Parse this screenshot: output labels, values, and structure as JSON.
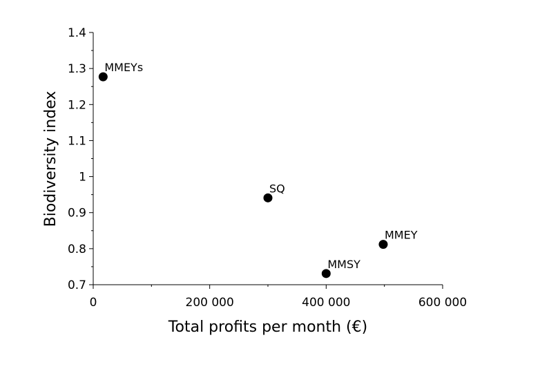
{
  "chart_data": {
    "type": "scatter",
    "title": "",
    "xlabel": "Total profits per month (€)",
    "ylabel": "Biodiversity index",
    "xlim": [
      0,
      600000
    ],
    "ylim": [
      0.7,
      1.4
    ],
    "grid": false,
    "xticks": [
      {
        "value": 0,
        "label": "0"
      },
      {
        "value": 200000,
        "label": "200 000"
      },
      {
        "value": 400000,
        "label": "400 000"
      },
      {
        "value": 600000,
        "label": "600 000"
      }
    ],
    "x_minor_ticks": [
      100000,
      300000,
      500000
    ],
    "yticks": [
      {
        "value": 0.7,
        "label": "0.7"
      },
      {
        "value": 0.8,
        "label": "0.8"
      },
      {
        "value": 0.9,
        "label": "0.9"
      },
      {
        "value": 1.0,
        "label": "1"
      },
      {
        "value": 1.1,
        "label": "1.1"
      },
      {
        "value": 1.2,
        "label": "1.2"
      },
      {
        "value": 1.3,
        "label": "1.3"
      },
      {
        "value": 1.4,
        "label": "1.4"
      }
    ],
    "y_minor_ticks": [
      0.75,
      0.85,
      0.95,
      1.05,
      1.15,
      1.25,
      1.35
    ],
    "points": [
      {
        "label": "MMEYs",
        "x": 17000,
        "y": 1.277
      },
      {
        "label": "SQ",
        "x": 300000,
        "y": 0.941
      },
      {
        "label": "MMEY",
        "x": 498000,
        "y": 0.812
      },
      {
        "label": "MMSY",
        "x": 400000,
        "y": 0.731
      }
    ],
    "marker_color": "#000000"
  }
}
